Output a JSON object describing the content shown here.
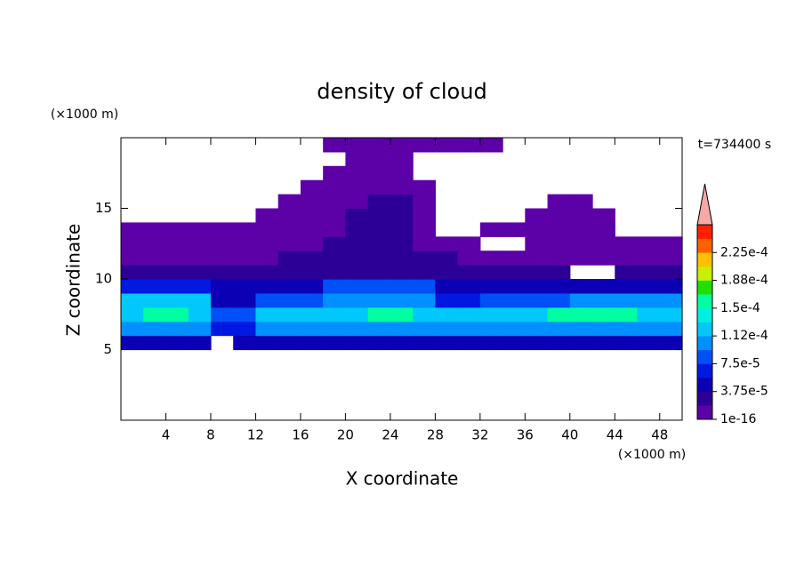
{
  "chart_data": {
    "type": "contourf",
    "title": "density of cloud",
    "x_label": "X coordinate",
    "y_label": "Z coordinate",
    "x_unit": "(×1000 m)",
    "y_unit": "(×1000 m)",
    "annotation": "t=734400 s",
    "xlim": [
      0,
      50
    ],
    "ylim": [
      0,
      20
    ],
    "xticks": [
      4,
      8,
      12,
      16,
      20,
      24,
      28,
      32,
      36,
      40,
      44,
      48
    ],
    "yticks": [
      5,
      10,
      15
    ],
    "x_edges": [
      0,
      2,
      4,
      6,
      8,
      10,
      12,
      14,
      16,
      18,
      20,
      22,
      24,
      26,
      28,
      30,
      32,
      34,
      36,
      38,
      40,
      42,
      44,
      46,
      48,
      50
    ],
    "y_edges": [
      0,
      1,
      2,
      3,
      4,
      5,
      6,
      7,
      8,
      9,
      10,
      11,
      12,
      13,
      14,
      15,
      16,
      17,
      18,
      19,
      20
    ],
    "levels": [
      1e-16,
      1.875e-05,
      3.75e-05,
      5.625e-05,
      7.5e-05,
      9.375e-05,
      0.0001125,
      0.00013125,
      0.00015,
      0.00016875,
      0.0001875,
      0.00020625,
      0.000225,
      0.00024375,
      0.0002625
    ],
    "colors": [
      "#5c00a8",
      "#2c0094",
      "#0c00b4",
      "#0018e0",
      "#0050f8",
      "#0090ff",
      "#00c8f8",
      "#00f0e0",
      "#00ffa0",
      "#20e000",
      "#c8f000",
      "#ffc000",
      "#ff6000",
      "#ff2000"
    ],
    "extend_color": "#f4a8a8",
    "colorbar_ticks": [
      {
        "value": 1e-16,
        "label": "1e-16"
      },
      {
        "value": 3.75e-05,
        "label": "3.75e-5"
      },
      {
        "value": 7.5e-05,
        "label": "7.5e-5"
      },
      {
        "value": 0.0001125,
        "label": "1.12e-4"
      },
      {
        "value": 0.00015,
        "label": "1.5e-4"
      },
      {
        "value": 0.0001875,
        "label": "1.88e-4"
      },
      {
        "value": 0.000225,
        "label": "2.25e-4"
      }
    ],
    "z": [
      [
        null,
        null,
        null,
        null,
        null,
        null,
        null,
        null,
        null,
        null,
        null,
        null,
        null,
        null,
        null,
        null,
        null,
        null,
        null,
        null,
        null,
        null,
        null,
        null,
        null
      ],
      [
        null,
        null,
        null,
        null,
        null,
        null,
        null,
        null,
        null,
        null,
        null,
        null,
        null,
        null,
        null,
        null,
        null,
        null,
        null,
        null,
        null,
        null,
        null,
        null,
        null
      ],
      [
        null,
        null,
        null,
        null,
        null,
        null,
        null,
        null,
        null,
        null,
        null,
        null,
        null,
        null,
        null,
        null,
        null,
        null,
        null,
        null,
        null,
        null,
        null,
        null,
        null
      ],
      [
        null,
        null,
        null,
        null,
        null,
        null,
        null,
        null,
        null,
        null,
        null,
        null,
        null,
        null,
        null,
        null,
        null,
        null,
        null,
        null,
        null,
        null,
        null,
        null,
        null
      ],
      [
        null,
        null,
        null,
        null,
        null,
        null,
        null,
        null,
        null,
        null,
        null,
        null,
        null,
        null,
        null,
        null,
        null,
        null,
        null,
        null,
        null,
        null,
        null,
        null,
        null
      ],
      [
        4e-05,
        4e-05,
        4e-05,
        4e-05,
        null,
        4e-05,
        4e-05,
        4e-05,
        4e-05,
        4e-05,
        4e-05,
        4e-05,
        4e-05,
        4e-05,
        4e-05,
        4e-05,
        4e-05,
        4e-05,
        4e-05,
        4e-05,
        4e-05,
        4e-05,
        4e-05,
        4e-05,
        4e-05
      ],
      [
        0.00011,
        0.00011,
        0.00011,
        0.00011,
        6e-05,
        6e-05,
        0.00011,
        0.00011,
        0.00011,
        0.00011,
        0.00011,
        0.00011,
        0.00011,
        0.00011,
        0.00011,
        0.00011,
        0.00011,
        0.00011,
        0.00011,
        0.00011,
        0.00011,
        0.00011,
        0.00011,
        0.00011,
        0.00011
      ],
      [
        0.00013,
        0.00015,
        0.00015,
        0.00013,
        8e-05,
        9e-05,
        0.00013,
        0.00013,
        0.00013,
        0.00013,
        0.00013,
        0.00015,
        0.00015,
        0.00013,
        0.00013,
        0.00013,
        0.00013,
        0.00013,
        0.00013,
        0.00015,
        0.00015,
        0.00015,
        0.00015,
        0.00013,
        0.00013
      ],
      [
        0.00012,
        0.00012,
        0.00012,
        0.00012,
        5e-05,
        5e-05,
        9e-05,
        9e-05,
        9e-05,
        0.00011,
        0.00011,
        0.00011,
        0.00011,
        0.00011,
        6e-05,
        6e-05,
        8e-05,
        8e-05,
        8e-05,
        8e-05,
        0.0001,
        0.0001,
        0.0001,
        0.0001,
        0.0001
      ],
      [
        6e-05,
        6e-05,
        6e-05,
        6e-05,
        4e-05,
        4e-05,
        4e-05,
        4e-05,
        4e-05,
        8e-05,
        8e-05,
        8e-05,
        8e-05,
        8e-05,
        4e-05,
        4e-05,
        4e-05,
        4e-05,
        4e-05,
        4e-05,
        4e-05,
        4e-05,
        4e-05,
        4e-05,
        4e-05
      ],
      [
        3e-05,
        3e-05,
        3e-05,
        3e-05,
        3e-05,
        3e-05,
        3e-05,
        3e-05,
        3e-05,
        3e-05,
        3e-05,
        3e-05,
        3e-05,
        3e-05,
        3e-05,
        3e-05,
        3e-05,
        3e-05,
        3e-05,
        3e-05,
        null,
        null,
        3e-05,
        3e-05,
        3e-05
      ],
      [
        1.5e-05,
        1.5e-05,
        1.5e-05,
        1.5e-05,
        1.5e-05,
        1.5e-05,
        1.5e-05,
        2.5e-05,
        2.5e-05,
        2.5e-05,
        2.5e-05,
        2.5e-05,
        2.5e-05,
        2.5e-05,
        2.5e-05,
        1e-05,
        1e-05,
        1e-05,
        1e-05,
        1e-05,
        1e-05,
        1e-05,
        1e-05,
        1e-05,
        1e-05
      ],
      [
        1e-05,
        1e-05,
        1e-05,
        1e-05,
        1e-05,
        1e-05,
        1e-05,
        1e-05,
        1e-05,
        2.5e-05,
        2.5e-05,
        2.5e-05,
        2.5e-05,
        1e-05,
        1e-05,
        1e-05,
        null,
        null,
        1e-05,
        1e-05,
        1e-05,
        1e-05,
        1e-05,
        1e-05,
        1e-05
      ],
      [
        1e-05,
        1e-05,
        1e-05,
        1e-05,
        1e-05,
        1e-05,
        1e-05,
        1e-05,
        1e-05,
        1e-05,
        2.5e-05,
        2.5e-05,
        2.5e-05,
        1e-05,
        null,
        null,
        1e-05,
        1e-05,
        1e-05,
        1e-05,
        1e-05,
        1e-05,
        null,
        null,
        null
      ],
      [
        null,
        null,
        null,
        null,
        null,
        null,
        1e-05,
        1e-05,
        1e-05,
        1e-05,
        2.5e-05,
        2.5e-05,
        2.5e-05,
        1e-05,
        null,
        null,
        null,
        null,
        1e-05,
        1e-05,
        1e-05,
        1e-05,
        null,
        null,
        null
      ],
      [
        null,
        null,
        null,
        null,
        null,
        null,
        null,
        1e-05,
        1e-05,
        1e-05,
        1e-05,
        2.5e-05,
        2.5e-05,
        1e-05,
        null,
        null,
        null,
        null,
        null,
        1e-05,
        1e-05,
        null,
        null,
        null,
        null
      ],
      [
        null,
        null,
        null,
        null,
        null,
        null,
        null,
        null,
        1e-05,
        1e-05,
        1e-05,
        1e-05,
        1e-05,
        1e-05,
        null,
        null,
        null,
        null,
        null,
        null,
        null,
        null,
        null,
        null,
        null
      ],
      [
        null,
        null,
        null,
        null,
        null,
        null,
        null,
        null,
        null,
        1e-05,
        1e-05,
        1e-05,
        1e-05,
        null,
        null,
        null,
        null,
        null,
        null,
        null,
        null,
        null,
        null,
        null,
        null
      ],
      [
        null,
        null,
        null,
        null,
        null,
        null,
        null,
        null,
        null,
        null,
        1e-05,
        1e-05,
        1e-05,
        null,
        null,
        null,
        null,
        null,
        null,
        null,
        null,
        null,
        null,
        null,
        null
      ],
      [
        null,
        null,
        null,
        null,
        null,
        null,
        null,
        null,
        null,
        1e-05,
        1e-05,
        1e-05,
        1e-05,
        1e-05,
        1e-05,
        1e-05,
        1e-05,
        null,
        null,
        null,
        null,
        null,
        null,
        null,
        null
      ]
    ]
  }
}
